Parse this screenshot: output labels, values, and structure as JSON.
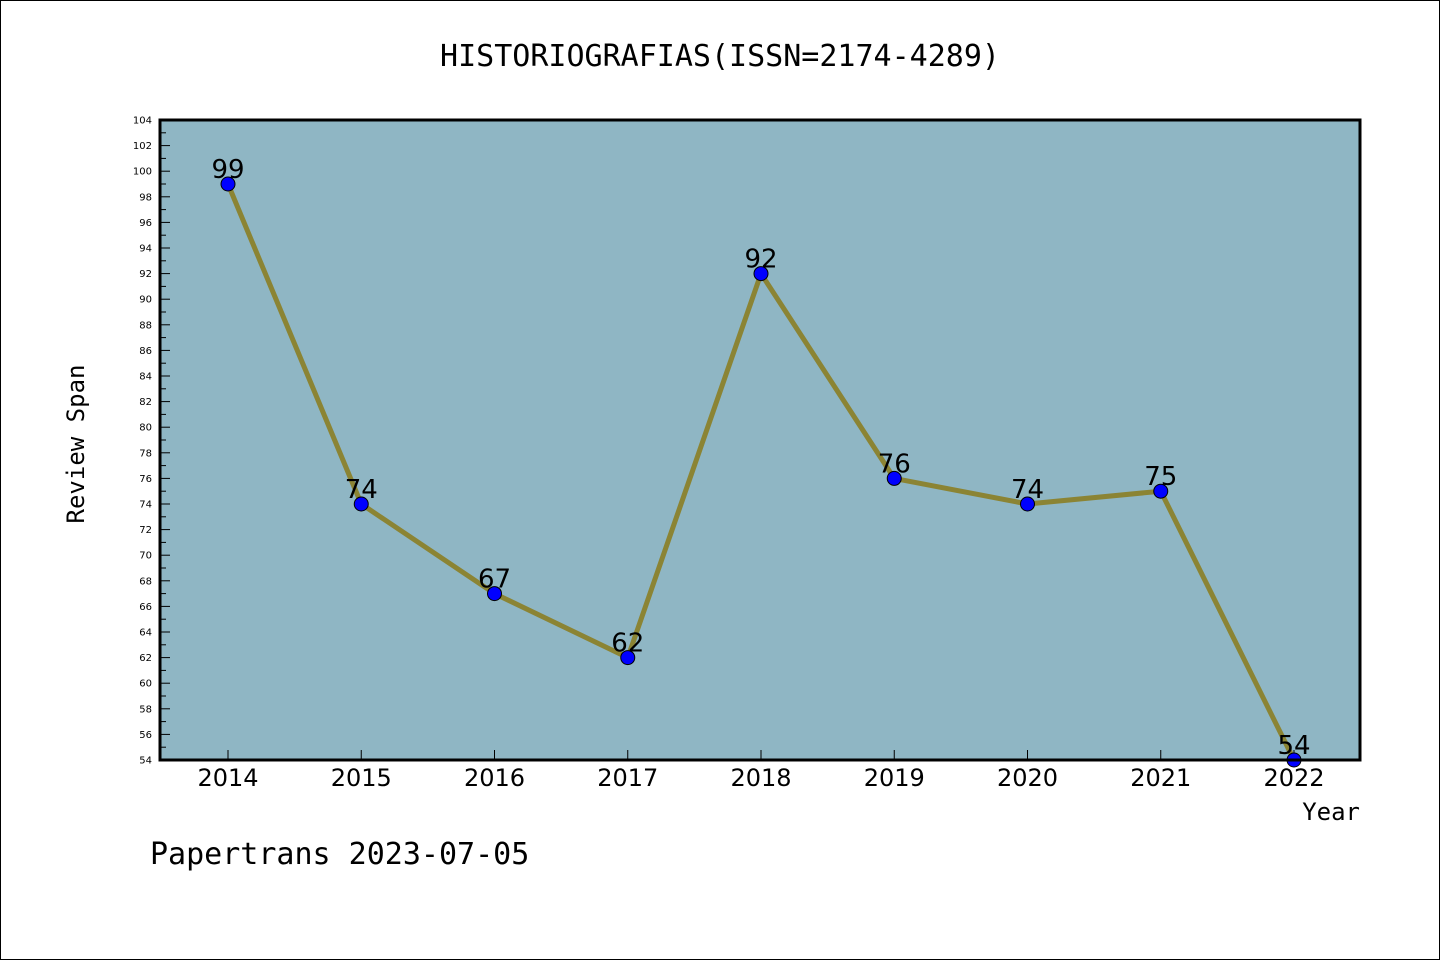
{
  "chart_data": {
    "type": "line",
    "title": "HISTORIOGRAFIAS(ISSN=2174-4289)",
    "xlabel": "Year",
    "ylabel": "Review Span",
    "categories": [
      "2014",
      "2015",
      "2016",
      "2017",
      "2018",
      "2019",
      "2020",
      "2021",
      "2022"
    ],
    "series": [
      {
        "values": [
          99,
          74,
          67,
          62,
          92,
          76,
          74,
          75,
          54
        ]
      }
    ],
    "ylim": [
      54,
      104
    ],
    "yticks": [
      54,
      56,
      58,
      60,
      62,
      64,
      66,
      68,
      70,
      72,
      74,
      76,
      78,
      80,
      82,
      84,
      86,
      88,
      90,
      92,
      94,
      96,
      98,
      100,
      102,
      104
    ],
    "grid": false,
    "colors": {
      "plot_bg": "#8fb6c4",
      "line": "#8b8434",
      "marker": "#0000ff"
    }
  },
  "footer": "Papertrans 2023-07-05"
}
